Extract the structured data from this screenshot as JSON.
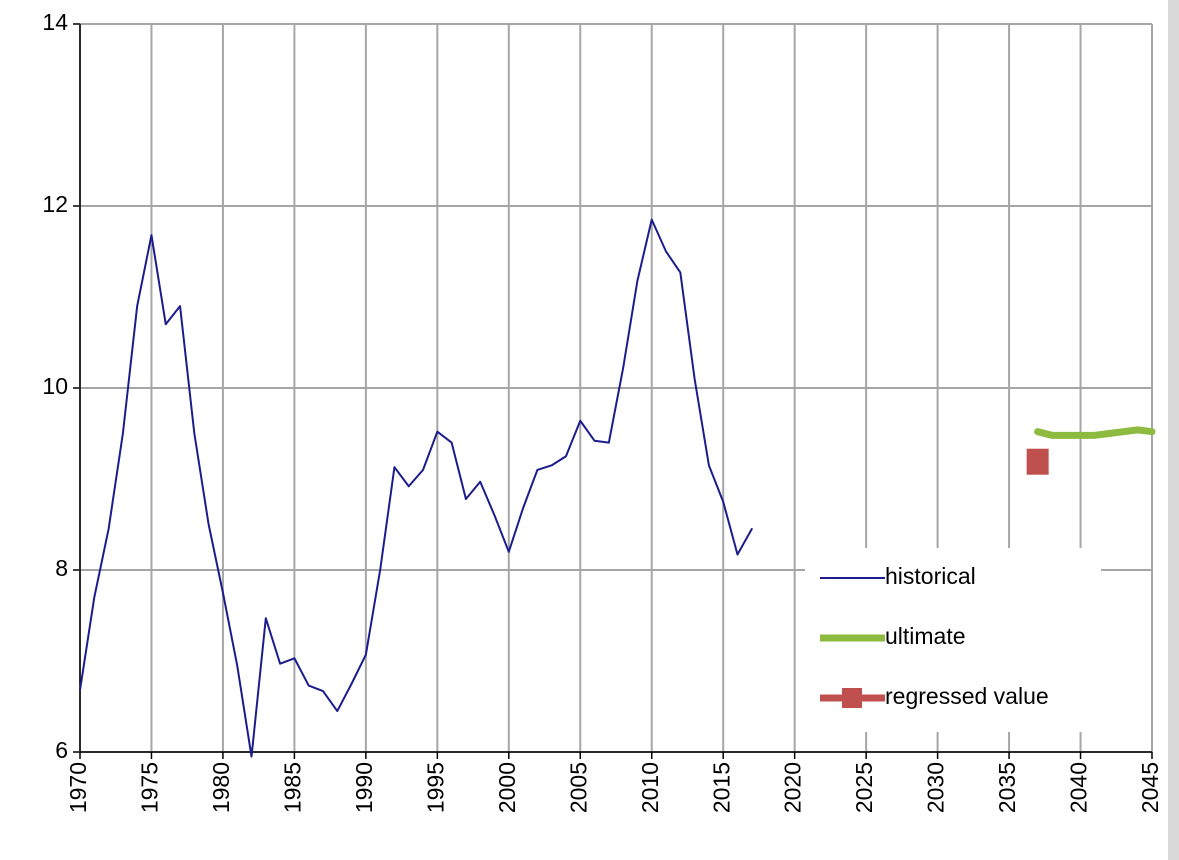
{
  "chart_data": {
    "type": "line",
    "series": [
      {
        "name": "historical",
        "color": "#1c1c8c",
        "width": 2,
        "x": [
          1970,
          1971,
          1972,
          1973,
          1974,
          1975,
          1976,
          1977,
          1978,
          1979,
          1980,
          1981,
          1982,
          1983,
          1984,
          1985,
          1986,
          1987,
          1988,
          1989,
          1990,
          1991,
          1992,
          1993,
          1994,
          1995,
          1996,
          1997,
          1998,
          1999,
          2000,
          2001,
          2002,
          2003,
          2004,
          2005,
          2006,
          2007,
          2008,
          2009,
          2010,
          2011,
          2012,
          2013,
          2014,
          2015,
          2016,
          2017
        ],
        "values": [
          6.68,
          7.7,
          8.45,
          9.5,
          10.9,
          11.68,
          10.7,
          10.9,
          9.5,
          8.5,
          7.75,
          6.95,
          5.95,
          7.47,
          6.97,
          7.03,
          6.73,
          6.67,
          6.45,
          6.75,
          7.07,
          8.0,
          9.13,
          8.92,
          9.1,
          9.52,
          9.4,
          8.78,
          8.97,
          8.6,
          8.2,
          8.68,
          9.1,
          9.15,
          9.25,
          9.64,
          9.42,
          9.4,
          10.22,
          11.18,
          11.85,
          11.5,
          11.27,
          10.1,
          9.15,
          8.75,
          8.17,
          8.45
        ]
      },
      {
        "name": "ultimate",
        "color": "#8dbb3f",
        "width": 7,
        "x": [
          2037,
          2038,
          2039,
          2040,
          2041,
          2042,
          2043,
          2044,
          2045
        ],
        "values": [
          9.52,
          9.48,
          9.48,
          9.48,
          9.48,
          9.5,
          9.52,
          9.54,
          9.52
        ]
      },
      {
        "name": "regressed value",
        "color": "#c0504d",
        "width": 7,
        "marker": "square",
        "x": [
          2037
        ],
        "values": [
          9.19
        ]
      }
    ],
    "xlim": [
      1970,
      2045
    ],
    "xticks": [
      1970,
      1975,
      1980,
      1985,
      1990,
      1995,
      2000,
      2005,
      2010,
      2015,
      2020,
      2025,
      2030,
      2035,
      2040,
      2045
    ],
    "ylim": [
      6,
      14
    ],
    "yticks": [
      6,
      8,
      10,
      12,
      14
    ],
    "grid": true,
    "legend": "lower right"
  }
}
